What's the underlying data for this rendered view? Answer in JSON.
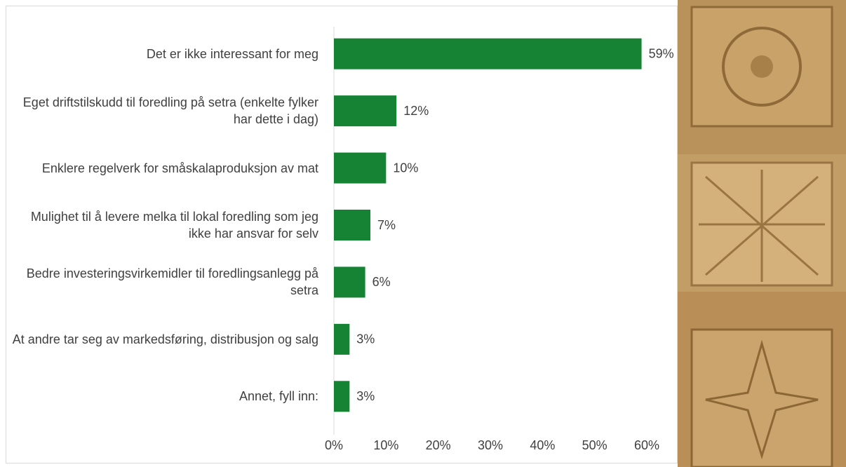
{
  "chart_data": {
    "type": "hbar",
    "categories": [
      "Det er ikke interessant for meg",
      "Eget driftstilskudd til foredling på setra (enkelte fylker har dette i dag)",
      "Enklere regelverk for småskalaproduksjon av mat",
      "Mulighet til å levere melka til lokal foredling som jeg ikke har ansvar for selv",
      "Bedre investeringsvirkemidler til foredlingsanlegg på setra",
      "At andre tar seg av markedsføring, distribusjon og salg",
      "Annet, fyll inn:"
    ],
    "values": [
      59,
      12,
      10,
      7,
      6,
      3,
      3
    ],
    "value_labels": [
      "59%",
      "12%",
      "10%",
      "7%",
      "6%",
      "3%",
      "3%"
    ],
    "color": "#168234",
    "xlim": [
      0,
      60
    ],
    "xticks": [
      {
        "value": 0,
        "label": "0%"
      },
      {
        "value": 10,
        "label": "10%"
      },
      {
        "value": 20,
        "label": "20%"
      },
      {
        "value": 30,
        "label": "30%"
      },
      {
        "value": 40,
        "label": "40%"
      },
      {
        "value": 50,
        "label": "50%"
      },
      {
        "value": 60,
        "label": "60%"
      }
    ],
    "grid": false
  }
}
